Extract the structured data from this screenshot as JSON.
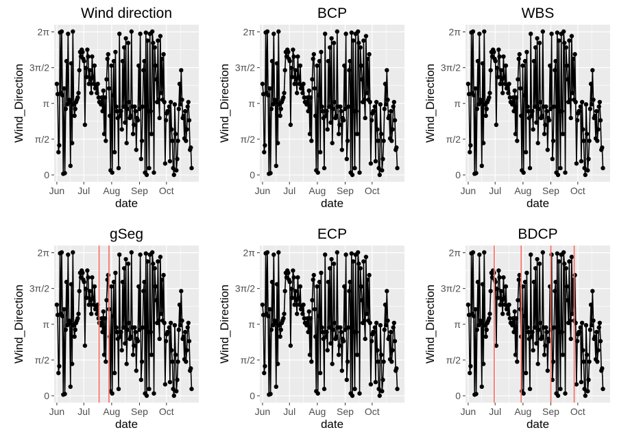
{
  "chart_data": {
    "type": "line",
    "shared": {
      "xlabel": "date",
      "ylabel": "Wind_Direction",
      "x_tick_labels": [
        "Jun",
        "Jul",
        "Aug",
        "Sep",
        "Oct"
      ],
      "x_tick_days": [
        0,
        30,
        61,
        92,
        122
      ],
      "xlim_days": [
        -3,
        158
      ],
      "y_tick_labels": [
        "0",
        "π/2",
        "π",
        "3π/2",
        "2π"
      ],
      "y_tick_values": [
        0,
        1.5708,
        3.1416,
        4.7124,
        6.2832
      ],
      "ylim": [
        -0.3,
        6.6
      ],
      "changepoint_color": "#f8766d",
      "series_color": "#000000",
      "series_unit": "radians",
      "x_unit": "days since Jun 1",
      "wind_direction_radians": [
        4.0,
        3.55,
        1.0,
        1.3,
        6.26,
        3.6,
        6.3,
        3.5,
        0.05,
        3.8,
        0.08,
        2.9,
        5.0,
        3.1,
        6.2,
        3.3,
        3.2,
        0.4,
        4.9,
        1.4,
        6.3,
        3.1,
        2.6,
        2.9,
        3.2,
        3.3,
        3.4,
        3.6,
        4.6,
        5.4,
        5.2,
        5.5,
        5.4,
        5.1,
        5.0,
        2.2,
        4.7,
        4.3,
        5.5,
        5.2,
        4.0,
        4.6,
        4.2,
        3.6,
        5.2,
        4.3,
        4.0,
        4.8,
        3.8,
        3.9,
        3.6,
        4.0,
        3.4,
        3.2,
        3.2,
        3.1,
        3.4,
        2.8,
        3.7,
        1.8,
        3.4,
        1.5,
        4.2,
        5.1,
        5.3,
        3.8,
        2.6,
        0.2,
        4.8,
        0.1,
        3.5,
        5.0,
        1.0,
        5.4,
        3.0,
        2.8,
        2.5,
        0.3,
        6.2,
        2.6,
        2.8,
        2.0,
        5.0,
        3.0,
        5.6,
        2.3,
        6.0,
        1.4,
        2.9,
        5.8,
        3.2,
        2.5,
        2.6,
        6.3,
        3.0,
        1.8,
        2.2,
        3.0,
        2.8,
        1.1,
        2.5,
        2.4,
        4.8,
        2.9,
        6.2,
        0.7,
        1.5,
        3.0,
        4.6,
        5.0,
        0.1,
        6.25,
        0.0,
        5.9,
        2.8,
        0.3,
        6.2,
        2.8,
        1.8,
        6.3,
        5.8,
        0.1,
        5.6,
        4.8,
        4.2,
        3.2,
        5.9,
        3.3,
        2.5,
        6.1,
        3.6,
        5.1,
        3.3,
        5.3,
        3.2,
        0.5,
        2.4,
        2.7,
        2.8,
        2.8,
        3.0,
        0.6,
        3.2,
        2.0,
        1.5,
        0.3,
        0.0,
        3.1,
        1.8,
        0.2,
        0.7,
        1.5,
        2.9,
        4.0,
        3.1,
        4.6,
        3.3,
        2.5,
        2.6,
        1.6,
        2.8,
        1.5,
        2.0,
        3.0,
        3.2,
        2.4,
        1.1,
        1.2,
        0.3
      ]
    },
    "panels": [
      {
        "title": "Wind direction",
        "changepoints_days": []
      },
      {
        "title": "BCP",
        "changepoints_days": []
      },
      {
        "title": "WBS",
        "changepoints_days": []
      },
      {
        "title": "gSeg",
        "changepoints_days": [
          47,
          58
        ]
      },
      {
        "title": "ECP",
        "changepoints_days": []
      },
      {
        "title": "BDCP",
        "changepoints_days": [
          29,
          59,
          92,
          118
        ]
      }
    ]
  }
}
